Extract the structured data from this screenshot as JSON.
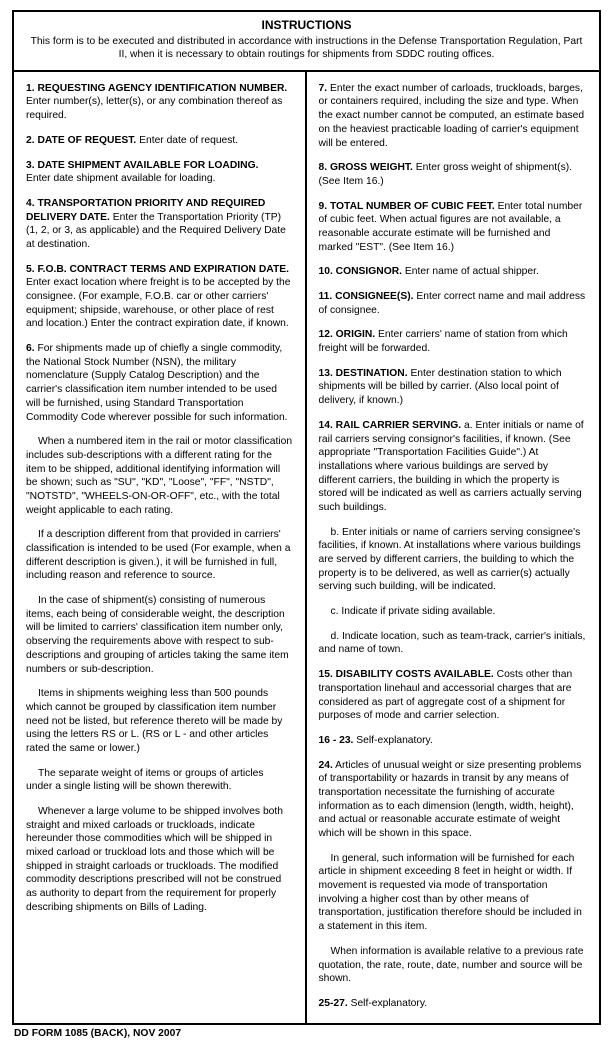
{
  "header": {
    "title": "INSTRUCTIONS",
    "sub": "This form is to be executed and distributed in accordance with instructions in the Defense Transportation Regulation, Part II, when it is necessary to obtain routings for shipments from SDDC routing offices."
  },
  "left": {
    "i1_bold": "1. REQUESTING AGENCY IDENTIFICATION NUMBER.",
    "i1_txt": "Enter number(s), letter(s), or any combination thereof as required.",
    "i2_bold": "2. DATE OF REQUEST.",
    "i2_txt": "Enter date of request.",
    "i3_bold": "3. DATE SHIPMENT AVAILABLE FOR LOADING.",
    "i3_txt": "Enter date shipment available for loading.",
    "i4_bold": "4. TRANSPORTATION PRIORITY AND REQUIRED DELIVERY DATE.",
    "i4_txt": "Enter the Transportation Priority (TP) (1, 2, or 3, as applicable) and the Required Delivery Date at destination.",
    "i5_bold": "5. F.O.B. CONTRACT TERMS AND EXPIRATION DATE.",
    "i5_txt": "Enter exact location where freight is to be accepted by the consignee.  (For example, F.O.B. car or other carriers' equipment; shipside, warehouse, or other place of rest and location.)  Enter the contract expiration date, if known.",
    "i6_bold": "6.",
    "i6_txt": "For shipments made up of chiefly a single commodity, the National Stock Number (NSN), the military nomenclature (Supply Catalog Description) and the carrier's classification item number intended to be used will be furnished, using Standard Transportation Commodity Code wherever possible for such information.",
    "i6_p2": "When a numbered item in the rail or motor classification includes sub-descriptions with a different rating for the item to be shipped, additional identifying information will be shown; such as \"SU\", \"KD\", \"Loose\", \"FF\", \"NSTD\", \"NOTSTD\", \"WHEELS-ON-OR-OFF\", etc., with the total weight applicable to each rating.",
    "i6_p3": "If a description different from that provided in carriers' classification is intended to be used (For example, when a different description is given.), it will be furnished in full, including reason and reference to source.",
    "i6_p4": "In the case of shipment(s) consisting of numerous items, each being of considerable weight, the description will be limited to carriers' classification item number only, observing the requirements above with respect to sub-descriptions and grouping of articles taking the same item numbers or sub-description.",
    "i6_p5": "Items in shipments weighing less than 500 pounds which cannot be grouped by classification item number need not be listed, but reference thereto will be made by using the letters RS or L. (RS or L - and other articles rated the same or lower.)",
    "i6_p6": "The separate weight of items or groups of articles under a single listing will be shown therewith.",
    "i6_p7": "Whenever a large volume to be shipped involves both straight and mixed carloads or truckloads, indicate hereunder those commodities which will be shipped in mixed carload or truckload lots and those which will be shipped in straight carloads or truckloads.  The modified commodity descriptions prescribed will not be construed as authority to depart from the requirement for properly describing shipments on Bills of Lading."
  },
  "right": {
    "i7_bold": "7.",
    "i7_txt": "Enter the exact number of carloads, truckloads, barges, or containers required, including the size and type.  When the exact number cannot be computed, an estimate based on the heaviest practicable loading of carrier's equipment will be entered.",
    "i8_bold": "8. GROSS WEIGHT.",
    "i8_txt": "Enter gross weight of shipment(s).  (See Item 16.)",
    "i9_bold": "9. TOTAL NUMBER OF CUBIC FEET.",
    "i9_txt": "Enter total number of cubic feet.  When actual figures are not available, a reasonable accurate estimate will be furnished and marked \"EST\".  (See Item 16.)",
    "i10_bold": "10.  CONSIGNOR.",
    "i10_txt": "Enter name of actual shipper.",
    "i11_bold": "11. CONSIGNEE(S).",
    "i11_txt": "Enter correct name and mail address of consignee.",
    "i12_bold": "12. ORIGIN.",
    "i12_txt": "Enter carriers' name of station from which freight will be forwarded.",
    "i13_bold": "13. DESTINATION.",
    "i13_txt": "Enter destination station to which shipments will be billed by carrier.  (Also local point of delivery, if known.)",
    "i14_bold": "14. RAIL CARRIER SERVING.",
    "i14_txt": "a. Enter initials or name of rail carriers serving consignor's facilities, if known. (See appropriate \"Transportation Facilities Guide\".)  At installations where various buildings are served by different carriers, the building in which the property is stored will be indicated as well as carriers actually serving such buildings.",
    "i14_b": "b.  Enter initials or name of carriers serving consignee's facilities, if known.  At installations where various buildings are served by different carriers, the building to which the property is to be delivered, as well as carrier(s) actually serving such building, will be indicated.",
    "i14_c": "c.  Indicate if private siding available.",
    "i14_d": "d.  Indicate location, such as team-track, carrier's initials, and name of town.",
    "i15_bold": "15. DISABILITY COSTS AVAILABLE.",
    "i15_txt": "Costs other than transportation linehaul and accessorial charges that are considered as part of aggregate cost of a shipment for purposes of mode and carrier selection.",
    "i16_bold": "16 - 23.",
    "i16_txt": "Self-explanatory.",
    "i24_bold": "24.",
    "i24_txt": "Articles of unusual weight or size presenting problems of transportability or hazards in transit by any means of transportation necessitate the furnishing of accurate information as to each dimension (length, width, height), and actual or reasonable accurate estimate of weight which will be shown in this space.",
    "i24_p2": "In general, such information will be furnished for each article in shipment exceeding 8 feet in height or width.  If movement is requested via mode of transportation involving a higher cost than by other means of transportation, justification therefore should be included in a statement in this item.",
    "i24_p3": "When information is available relative to a previous rate quotation, the rate, route, date, number and source will be shown.",
    "i25_bold": "25-27.",
    "i25_txt": "Self-explanatory."
  },
  "footer": "DD FORM 1085 (BACK), NOV 2007"
}
